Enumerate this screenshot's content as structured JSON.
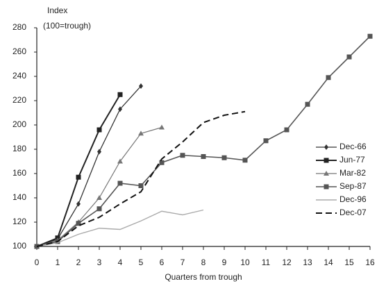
{
  "chart_data": {
    "type": "line",
    "y_label_lines": [
      "Index",
      "(100=trough)"
    ],
    "x_label": "Quarters from trough",
    "x": [
      0,
      1,
      2,
      3,
      4,
      5,
      6,
      7,
      8,
      9,
      10,
      11,
      12,
      13,
      14,
      15,
      16
    ],
    "xlim": [
      0,
      16
    ],
    "xticks": [
      0,
      1,
      2,
      3,
      4,
      5,
      6,
      7,
      8,
      9,
      10,
      11,
      12,
      13,
      14,
      15,
      16
    ],
    "ylim": [
      100,
      280
    ],
    "yticks": [
      100,
      120,
      140,
      160,
      180,
      200,
      220,
      240,
      260,
      280
    ],
    "grid": false,
    "legend": "right",
    "series": [
      {
        "name": "Dec-66",
        "color": "#333333",
        "marker": "diamond",
        "dash": false,
        "width": 1.3,
        "values": [
          100,
          106,
          135,
          178,
          213,
          232,
          null,
          null,
          null,
          null,
          null,
          null,
          null,
          null,
          null,
          null,
          null
        ]
      },
      {
        "name": "Jun-77",
        "color": "#222222",
        "marker": "square",
        "dash": false,
        "width": 2,
        "values": [
          100,
          107,
          157,
          196,
          225,
          null,
          null,
          null,
          null,
          null,
          null,
          null,
          null,
          null,
          null,
          null,
          null
        ]
      },
      {
        "name": "Mar-82",
        "color": "#777777",
        "marker": "triangle",
        "dash": false,
        "width": 1.2,
        "values": [
          100,
          105,
          120,
          140,
          170,
          193,
          198,
          null,
          null,
          null,
          null,
          null,
          null,
          null,
          null,
          null,
          null
        ]
      },
      {
        "name": "Sep-87",
        "color": "#555555",
        "marker": "square",
        "dash": false,
        "width": 1.6,
        "values": [
          100,
          104,
          119,
          131,
          152,
          150,
          169,
          175,
          174,
          173,
          171,
          187,
          196,
          217,
          239,
          256,
          273
        ]
      },
      {
        "name": "Dec-96",
        "color": "#aaaaaa",
        "marker": null,
        "dash": false,
        "width": 1.4,
        "values": [
          100,
          103,
          110,
          115,
          114,
          121,
          129,
          126,
          130,
          null,
          null,
          null,
          null,
          null,
          null,
          null,
          null
        ]
      },
      {
        "name": "Dec-07",
        "color": "#111111",
        "marker": null,
        "dash": true,
        "width": 2,
        "values": [
          100,
          104,
          117,
          124,
          135,
          145,
          172,
          186,
          202,
          208,
          211,
          null,
          null,
          null,
          null,
          null,
          null
        ]
      }
    ]
  }
}
